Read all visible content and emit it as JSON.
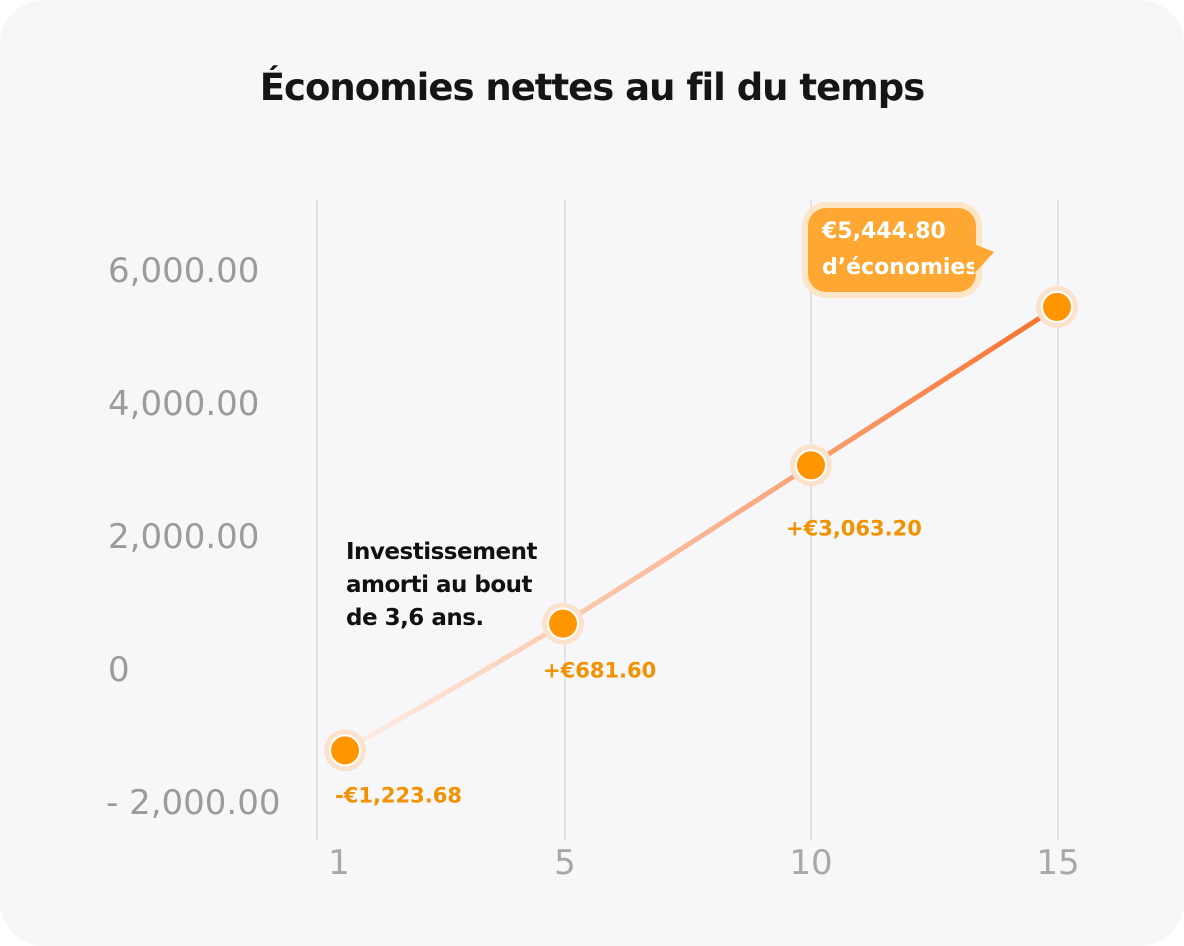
{
  "chart_data": {
    "type": "line",
    "title": "Économies nettes au fil du temps",
    "categories": [
      "1",
      "5",
      "10",
      "15"
    ],
    "values": [
      -1223.68,
      681.6,
      3063.2,
      5444.8
    ],
    "data_labels": [
      "-€1,223.68",
      "+€681.60",
      "+€3,063.20",
      ""
    ],
    "y_ticks": [
      "6,000.00",
      "4,000.00",
      "2,000.00",
      "0",
      "- 2,000.00"
    ],
    "y_tick_values": [
      6000,
      4000,
      2000,
      0,
      -2000
    ],
    "ylim": [
      -2000,
      6000
    ],
    "grid": "vertical",
    "highlight_category": "15",
    "tooltip": {
      "value": "€5,444.80",
      "text": "d’économies"
    },
    "annotation": "Investissement amorti au bout de 3,6 ans.",
    "colors": {
      "point": "#ff9500",
      "line_start": "#fde3d6",
      "line_end": "#f7702a",
      "label": "#f39200",
      "tooltip": "#ffa733",
      "axis_text": "#9b9b9b"
    }
  }
}
